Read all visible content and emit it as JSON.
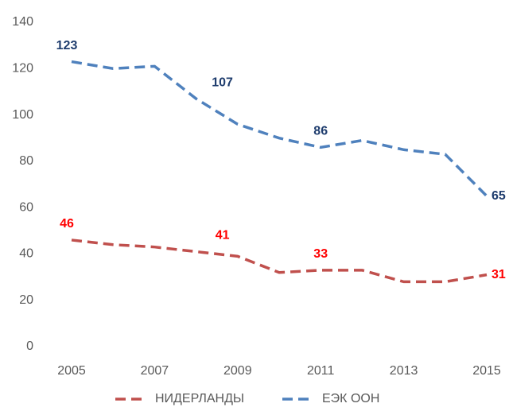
{
  "chart_data": {
    "type": "line",
    "x": [
      2005,
      2006,
      2007,
      2008,
      2009,
      2010,
      2011,
      2012,
      2013,
      2014,
      2015
    ],
    "xlim": [
      2005,
      2015
    ],
    "xticks": [
      2005,
      2007,
      2009,
      2011,
      2013,
      2015
    ],
    "ylim": [
      0,
      140
    ],
    "yticks": [
      0,
      20,
      40,
      60,
      80,
      100,
      120,
      140
    ],
    "grid": false,
    "legend": "bottom",
    "series": [
      {
        "name": "НИДЕРЛАНДЫ",
        "color": "#c0504d",
        "label_color": "#ff0000",
        "values": [
          46,
          44,
          43,
          41,
          39,
          32,
          33,
          33,
          28,
          28,
          31
        ],
        "value_labels": [
          "46",
          null,
          null,
          "41",
          null,
          null,
          "33",
          null,
          null,
          null,
          "31"
        ]
      },
      {
        "name": "ЕЭК ООН",
        "color": "#4f81bd",
        "label_color": "#1f3d6e",
        "values": [
          123,
          120,
          121,
          107,
          96,
          90,
          86,
          89,
          85,
          83,
          65
        ],
        "value_labels": [
          "123",
          null,
          null,
          "107",
          null,
          null,
          "86",
          null,
          null,
          null,
          "65"
        ]
      }
    ]
  }
}
